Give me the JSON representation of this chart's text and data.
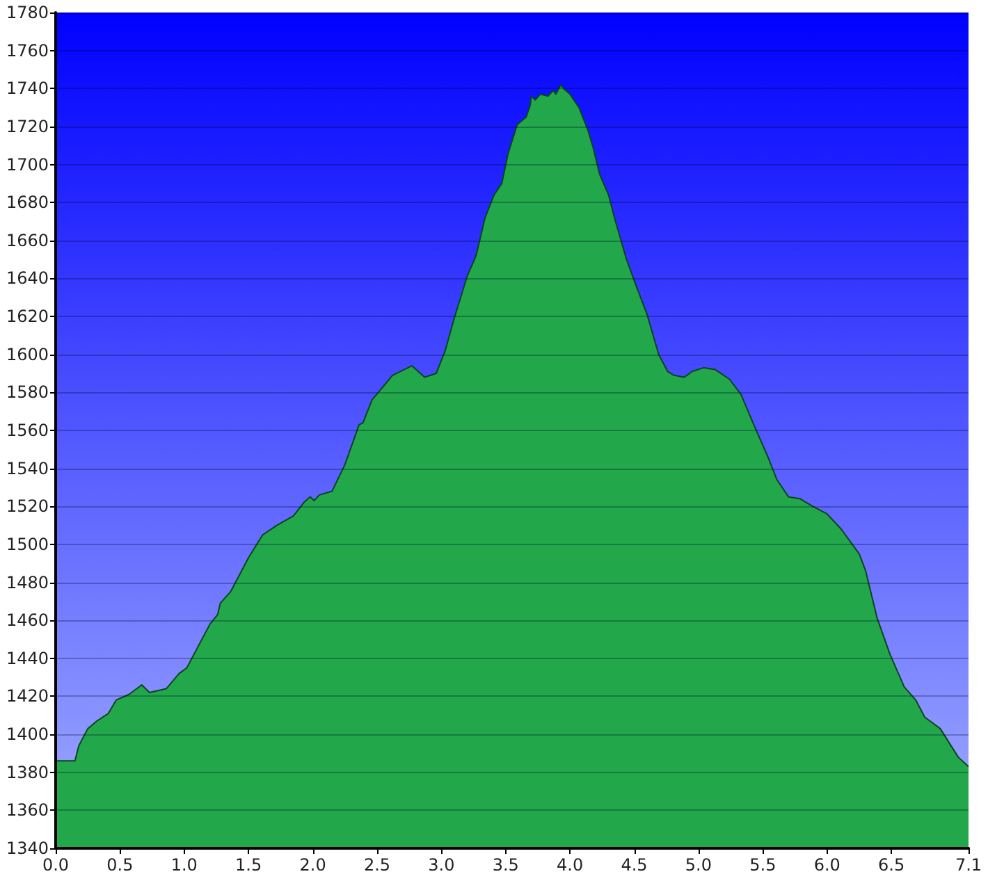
{
  "chart_data": {
    "type": "area",
    "color": "#22a84a",
    "marker": "none",
    "grid": "y",
    "x": [
      0,
      0.15,
      0.18,
      0.25,
      0.32,
      0.41,
      0.47,
      0.57,
      0.67,
      0.73,
      0.86,
      0.96,
      1.02,
      1.2,
      1.26,
      1.28,
      1.36,
      1.5,
      1.61,
      1.72,
      1.85,
      1.93,
      1.98,
      2.01,
      2.05,
      2.15,
      2.25,
      2.36,
      2.39,
      2.46,
      2.62,
      2.77,
      2.87,
      2.96,
      3.03,
      3.1,
      3.2,
      3.27,
      3.34,
      3.41,
      3.47,
      3.52,
      3.59,
      3.66,
      3.69,
      3.7,
      3.73,
      3.77,
      3.83,
      3.87,
      3.89,
      3.93,
      3.95,
      4.0,
      4.07,
      4.14,
      4.18,
      4.23,
      4.3,
      4.35,
      4.44,
      4.51,
      4.6,
      4.69,
      4.76,
      4.81,
      4.89,
      4.95,
      5.04,
      5.13,
      5.24,
      5.33,
      5.43,
      5.54,
      5.61,
      5.7,
      5.79,
      5.89,
      6.0,
      6.11,
      6.25,
      6.3,
      6.39,
      6.49,
      6.6,
      6.69,
      6.76,
      6.88,
      7.02,
      7.1
    ],
    "values": [
      1386,
      1386,
      1394,
      1403,
      1407,
      1411,
      1418,
      1421,
      1426,
      1422,
      1424,
      1432,
      1435,
      1458,
      1463,
      1469,
      1475,
      1493,
      1505,
      1510,
      1515,
      1522,
      1525,
      1523,
      1526,
      1528,
      1542,
      1563,
      1564,
      1576,
      1589,
      1594,
      1588,
      1590,
      1602,
      1619,
      1641,
      1652,
      1672,
      1684,
      1690,
      1706,
      1721,
      1725,
      1731,
      1736,
      1734,
      1737,
      1736,
      1739,
      1737,
      1742,
      1740,
      1737,
      1730,
      1718,
      1709,
      1695,
      1684,
      1671,
      1650,
      1637,
      1621,
      1600,
      1591,
      1589,
      1588,
      1591,
      1593,
      1592,
      1587,
      1579,
      1563,
      1546,
      1534,
      1525,
      1524,
      1520,
      1516,
      1508,
      1495,
      1486,
      1461,
      1442,
      1425,
      1418,
      1409,
      1403,
      1388,
      1383
    ],
    "xlim": [
      0,
      7.1
    ],
    "xticks": [
      {
        "value": 0,
        "label": "0.0"
      },
      0.5,
      {
        "value": 1,
        "label": "1.0"
      },
      1.5,
      {
        "value": 2,
        "label": "2.0"
      },
      2.5,
      {
        "value": 3,
        "label": "3.0"
      },
      3.5,
      {
        "value": 4,
        "label": "4.0"
      },
      4.5,
      {
        "value": 5,
        "label": "5.0"
      },
      5.5,
      {
        "value": 6,
        "label": "6.0"
      },
      6.5,
      7.1
    ],
    "ylim": [
      1340,
      1780
    ],
    "yticks": [
      1340,
      1360,
      1380,
      1400,
      1420,
      1440,
      1460,
      1480,
      1500,
      1520,
      1540,
      1560,
      1580,
      1600,
      1620,
      1640,
      1660,
      1680,
      1700,
      1720,
      1740,
      1760,
      1780
    ]
  }
}
